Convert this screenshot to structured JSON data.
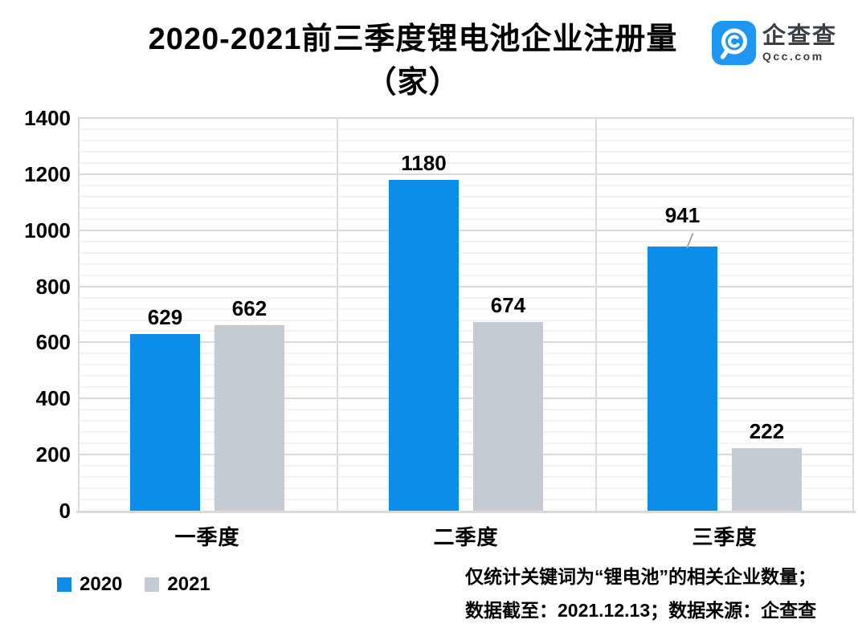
{
  "title": {
    "line1": "2020-2021前三季度锂电池企业注册量",
    "line2": "（家）"
  },
  "logo": {
    "icon": "qcc-magnifier-icon",
    "name": "企查查",
    "domain": "Qcc.com"
  },
  "footer": {
    "line1": "仅统计关键词为“锂电池”的相关企业数量；",
    "line2": "数据截至：2021.12.13；数据来源：企查查"
  },
  "colors": {
    "series_2020": "#0b8de9",
    "series_2021": "#c4cbd3",
    "logo_blue": "#1e97f3",
    "grid_major": "#dadada",
    "grid_minor": "#f3f3f3"
  },
  "chart_data": {
    "type": "bar",
    "title": "2020-2021前三季度锂电池企业注册量（家）",
    "categories": [
      "一季度",
      "二季度",
      "三季度"
    ],
    "series": [
      {
        "name": "2020",
        "color": "#0b8de9",
        "values": [
          629,
          1180,
          941
        ],
        "label_callout": [
          false,
          false,
          true
        ]
      },
      {
        "name": "2021",
        "color": "#c4cbd3",
        "values": [
          662,
          674,
          222
        ],
        "label_callout": [
          false,
          false,
          false
        ]
      }
    ],
    "xlabel": "",
    "ylabel": "",
    "ylim": [
      0,
      1400
    ],
    "y_ticks": [
      0,
      200,
      400,
      600,
      800,
      1000,
      1200,
      1400
    ],
    "y_minor_step": 40,
    "grid": true,
    "legend_position": "bottom-left",
    "data_labels": true
  }
}
